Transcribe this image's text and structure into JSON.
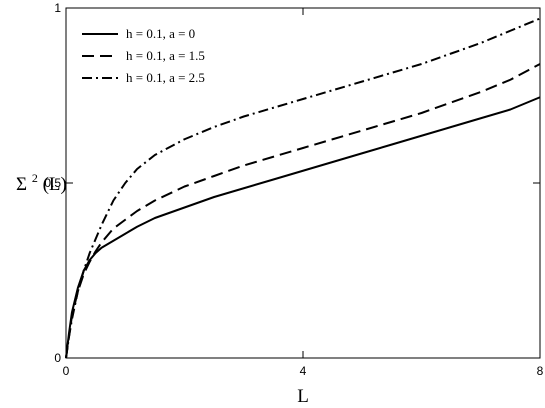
{
  "chart_data": {
    "type": "line",
    "title": "",
    "xlabel": "L",
    "ylabel_main": "Σ",
    "ylabel_sup": "2",
    "ylabel_tail": "(L)",
    "xlim": [
      0,
      8
    ],
    "ylim": [
      0,
      1
    ],
    "xticks": [
      0,
      4,
      8
    ],
    "xtick_labels": [
      "0",
      "4",
      "8"
    ],
    "yticks": [
      0,
      0.5,
      1
    ],
    "ytick_labels": [
      "0",
      "0.5",
      "1"
    ],
    "grid": false,
    "legend_position": "top-left",
    "series": [
      {
        "name": "h = 0.1, a = 0",
        "dash": "solid",
        "color": "#000000",
        "x": [
          0,
          0.05,
          0.1,
          0.2,
          0.3,
          0.4,
          0.5,
          0.6,
          0.8,
          1.0,
          1.2,
          1.5,
          2.0,
          2.5,
          3.0,
          3.5,
          4.0,
          4.5,
          5.0,
          5.5,
          6.0,
          6.5,
          7.0,
          7.5,
          8.0
        ],
        "y": [
          0,
          0.07,
          0.13,
          0.2,
          0.25,
          0.28,
          0.3,
          0.315,
          0.335,
          0.355,
          0.375,
          0.4,
          0.43,
          0.46,
          0.485,
          0.51,
          0.535,
          0.56,
          0.585,
          0.61,
          0.635,
          0.66,
          0.685,
          0.71,
          0.745
        ]
      },
      {
        "name": "h = 0.1, a = 1.5",
        "dash": "dashed",
        "color": "#000000",
        "x": [
          0,
          0.05,
          0.1,
          0.2,
          0.3,
          0.4,
          0.5,
          0.6,
          0.8,
          1.0,
          1.2,
          1.5,
          2.0,
          2.5,
          3.0,
          3.5,
          4.0,
          4.5,
          5.0,
          5.5,
          6.0,
          6.5,
          7.0,
          7.5,
          8.0
        ],
        "y": [
          0,
          0.06,
          0.12,
          0.19,
          0.24,
          0.275,
          0.305,
          0.33,
          0.37,
          0.395,
          0.42,
          0.45,
          0.49,
          0.52,
          0.55,
          0.575,
          0.6,
          0.625,
          0.65,
          0.675,
          0.7,
          0.73,
          0.76,
          0.795,
          0.84
        ]
      },
      {
        "name": "h = 0.1, a = 2.5",
        "dash": "dashdot",
        "color": "#000000",
        "x": [
          0,
          0.05,
          0.1,
          0.2,
          0.3,
          0.4,
          0.5,
          0.6,
          0.8,
          1.0,
          1.2,
          1.5,
          2.0,
          2.5,
          3.0,
          3.5,
          4.0,
          4.5,
          5.0,
          5.5,
          6.0,
          6.5,
          7.0,
          7.5,
          8.0
        ],
        "y": [
          0,
          0.06,
          0.11,
          0.19,
          0.25,
          0.3,
          0.34,
          0.38,
          0.45,
          0.5,
          0.54,
          0.58,
          0.625,
          0.66,
          0.69,
          0.715,
          0.74,
          0.765,
          0.79,
          0.815,
          0.84,
          0.87,
          0.9,
          0.935,
          0.97
        ]
      }
    ]
  }
}
